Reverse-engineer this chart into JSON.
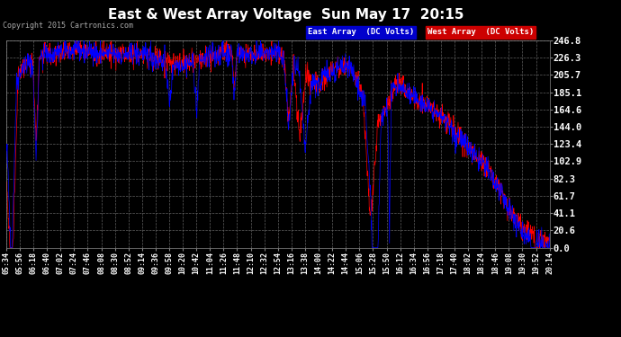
{
  "title": "East & West Array Voltage  Sun May 17  20:15",
  "copyright": "Copyright 2015 Cartronics.com",
  "east_label": "East Array  (DC Volts)",
  "west_label": "West Array  (DC Volts)",
  "east_color": "#0000ff",
  "west_color": "#ff0000",
  "bg_color": "#000000",
  "plot_bg_color": "#000000",
  "grid_color": "#606060",
  "title_color": "#ffffff",
  "text_color": "#ffffff",
  "yticks": [
    0.0,
    20.6,
    41.1,
    61.7,
    82.3,
    102.9,
    123.4,
    144.0,
    164.6,
    185.1,
    205.7,
    226.3,
    246.8
  ],
  "ymin": 0.0,
  "ymax": 246.8,
  "xtick_labels": [
    "05:34",
    "05:56",
    "06:18",
    "06:40",
    "07:02",
    "07:24",
    "07:46",
    "08:08",
    "08:30",
    "08:52",
    "09:14",
    "09:36",
    "09:58",
    "10:20",
    "10:42",
    "11:04",
    "11:26",
    "11:48",
    "12:10",
    "12:32",
    "12:54",
    "13:16",
    "13:38",
    "14:00",
    "14:22",
    "14:44",
    "15:06",
    "15:28",
    "15:50",
    "16:12",
    "16:34",
    "16:56",
    "17:18",
    "17:40",
    "18:02",
    "18:24",
    "18:46",
    "19:08",
    "19:30",
    "19:52",
    "20:14"
  ],
  "n_xticks": 41,
  "legend_east_bg": "#0000cc",
  "legend_west_bg": "#cc0000"
}
